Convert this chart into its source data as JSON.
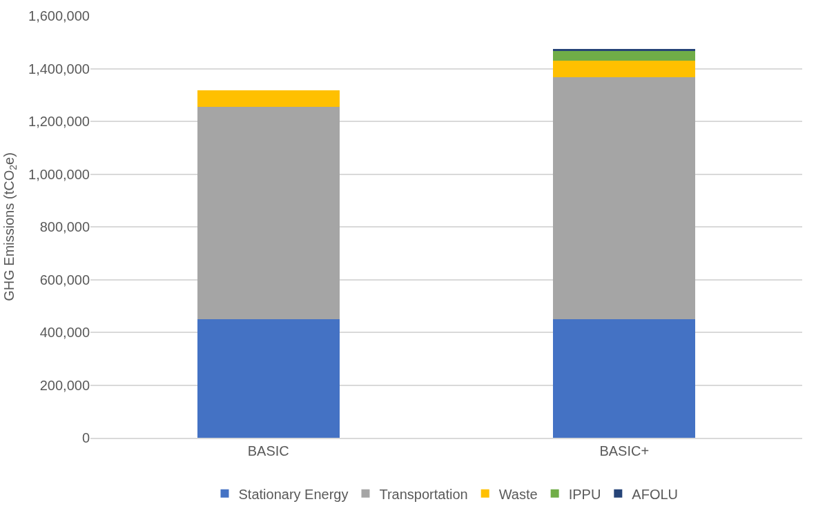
{
  "chart_data": {
    "type": "bar",
    "stacked": true,
    "categories": [
      "BASIC",
      "BASIC+"
    ],
    "ylabel": "GHG Emissions (tCO$_{2}$e)",
    "series": [
      {
        "name": "Stationary Energy",
        "color": "#4472c4",
        "values": [
          450000,
          450000
        ]
      },
      {
        "name": "Transportation",
        "color": "#a5a5a5",
        "values": [
          805000,
          918000
        ]
      },
      {
        "name": "Waste",
        "color": "#ffc000",
        "values": [
          62000,
          62000
        ]
      },
      {
        "name": "IPPU",
        "color": "#70ad47",
        "values": [
          0,
          39000
        ]
      },
      {
        "name": "AFOLU",
        "color": "#264478",
        "values": [
          0,
          5000
        ]
      }
    ],
    "ylim": [
      0,
      1600000
    ],
    "yticks": [
      {
        "value": 0,
        "label": "0"
      },
      {
        "value": 200000,
        "label": "200,000"
      },
      {
        "value": 400000,
        "label": "400,000"
      },
      {
        "value": 600000,
        "label": "600,000"
      },
      {
        "value": 800000,
        "label": "800,000"
      },
      {
        "value": 1000000,
        "label": "1,000,000"
      },
      {
        "value": 1200000,
        "label": "1,200,000"
      },
      {
        "value": 1400000,
        "label": "1,400,000"
      },
      {
        "value": 1600000,
        "label": "1,600,000"
      }
    ],
    "grid": "y",
    "legend": "bottom"
  }
}
